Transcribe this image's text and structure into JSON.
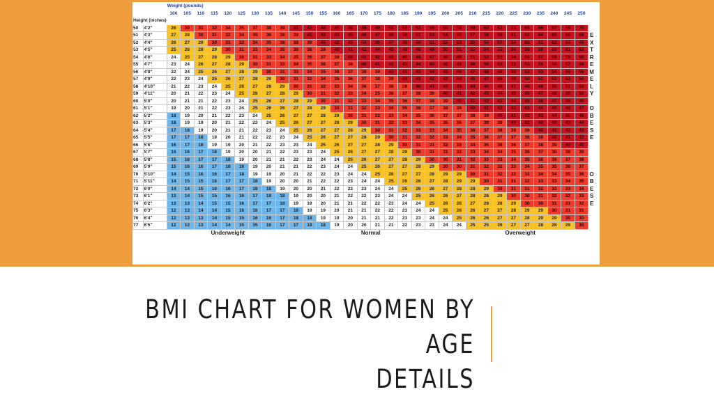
{
  "slide": {
    "title_line1": "BMI CHART FOR WOMEN BY AGE",
    "title_line2": "DETAILS",
    "accent_color": "#ef9c3c"
  },
  "table": {
    "weight_header": "Weight (pounds)",
    "height_header": "Height (inches)",
    "weights": [
      100,
      105,
      110,
      115,
      120,
      125,
      130,
      135,
      140,
      145,
      150,
      155,
      160,
      165,
      170,
      175,
      180,
      185,
      190,
      195,
      200,
      205,
      210,
      215,
      220,
      225,
      230,
      235,
      240,
      245,
      250
    ],
    "rows": [
      {
        "inches": "50",
        "label": "4'2\""
      },
      {
        "inches": "51",
        "label": "4'3\""
      },
      {
        "inches": "52",
        "label": "4'4\""
      },
      {
        "inches": "53",
        "label": "4'5\""
      },
      {
        "inches": "54",
        "label": "4'6\""
      },
      {
        "inches": "55",
        "label": "4'7\""
      },
      {
        "inches": "56",
        "label": "4'8\""
      },
      {
        "inches": "57",
        "label": "4'9\""
      },
      {
        "inches": "58",
        "label": "4'10\""
      },
      {
        "inches": "59",
        "label": "4'11\""
      },
      {
        "inches": "60",
        "label": "5'0\""
      },
      {
        "inches": "61",
        "label": "5'1\""
      },
      {
        "inches": "62",
        "label": "5'2\""
      },
      {
        "inches": "63",
        "label": "5'3\""
      },
      {
        "inches": "64",
        "label": "5'4\""
      },
      {
        "inches": "65",
        "label": "5'5\""
      },
      {
        "inches": "66",
        "label": "5'6\""
      },
      {
        "inches": "67",
        "label": "5'7\""
      },
      {
        "inches": "68",
        "label": "5'8\""
      },
      {
        "inches": "69",
        "label": "5'9\""
      },
      {
        "inches": "70",
        "label": "5'10\""
      },
      {
        "inches": "71",
        "label": "5'11\""
      },
      {
        "inches": "72",
        "label": "6'0\""
      },
      {
        "inches": "73",
        "label": "6'1\""
      },
      {
        "inches": "74",
        "label": "6'2\""
      },
      {
        "inches": "75",
        "label": "6'3\""
      },
      {
        "inches": "76",
        "label": "6'4\""
      },
      {
        "inches": "77",
        "label": "6'5\""
      }
    ],
    "side_label_extremely": "EXTREMELY",
    "side_label_obese": "OBESE",
    "side_label_obese2": "OBESE",
    "categories": {
      "underweight": "Underweight",
      "normal": "Normal",
      "overweight": "Overweight"
    },
    "colors": {
      "underweight": "#6fb6ea",
      "normal": "#ffffff",
      "overweight": "#f7c127",
      "obese": "#f03a2c",
      "extremely_obese": "#c6121f"
    }
  }
}
